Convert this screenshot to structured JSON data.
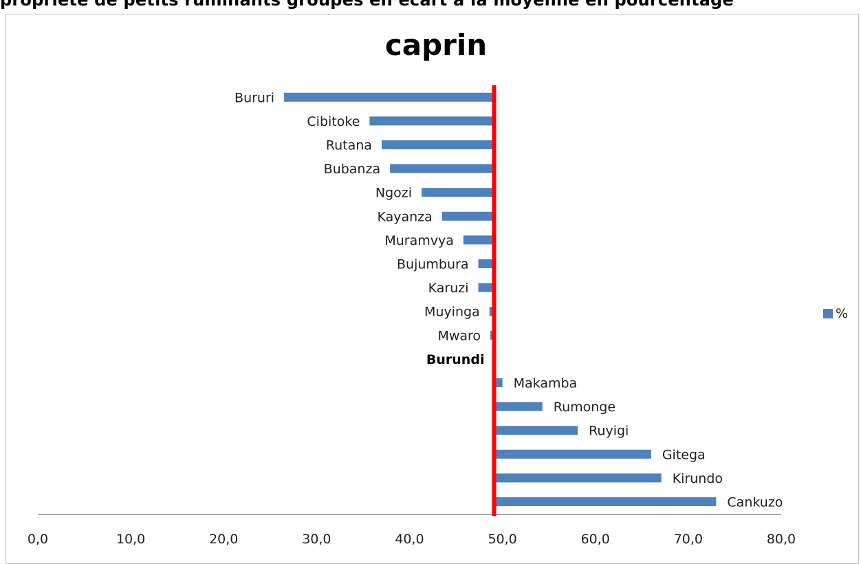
{
  "caption": "propriété de petits ruminants groupés en écart à la moyenne en pourcentage",
  "chart_data": {
    "type": "bar",
    "orientation": "horizontal",
    "title": "caprin",
    "categories": [
      "Bururi",
      "Cibitoke",
      "Rutana",
      "Bubanza",
      "Ngozi",
      "Kayanza",
      "Muramvya",
      "Bujumbura",
      "Karuzi",
      "Muyinga",
      "Mwaro",
      "Burundi",
      "Makamba",
      "Rumonge",
      "Ruyigi",
      "Gitega",
      "Kirundo",
      "Cankuzo"
    ],
    "highlight_category": "Burundi",
    "reference_value": 49.1,
    "reference_color": "#ff0000",
    "series": [
      {
        "name": "%",
        "color": "#4f81bd",
        "values": [
          26.5,
          35.7,
          37.0,
          37.9,
          41.3,
          43.5,
          45.8,
          47.4,
          47.4,
          48.6,
          48.7,
          49.1,
          50.0,
          54.3,
          58.1,
          66.0,
          67.1,
          73.0
        ]
      }
    ],
    "x_ticks": [
      "0,0",
      "10,0",
      "20,0",
      "30,0",
      "40,0",
      "50,0",
      "60,0",
      "70,0",
      "80,0"
    ],
    "xlim": [
      0,
      80
    ],
    "ylabel": "",
    "xlabel": "",
    "grid": false,
    "legend_position": "right"
  }
}
